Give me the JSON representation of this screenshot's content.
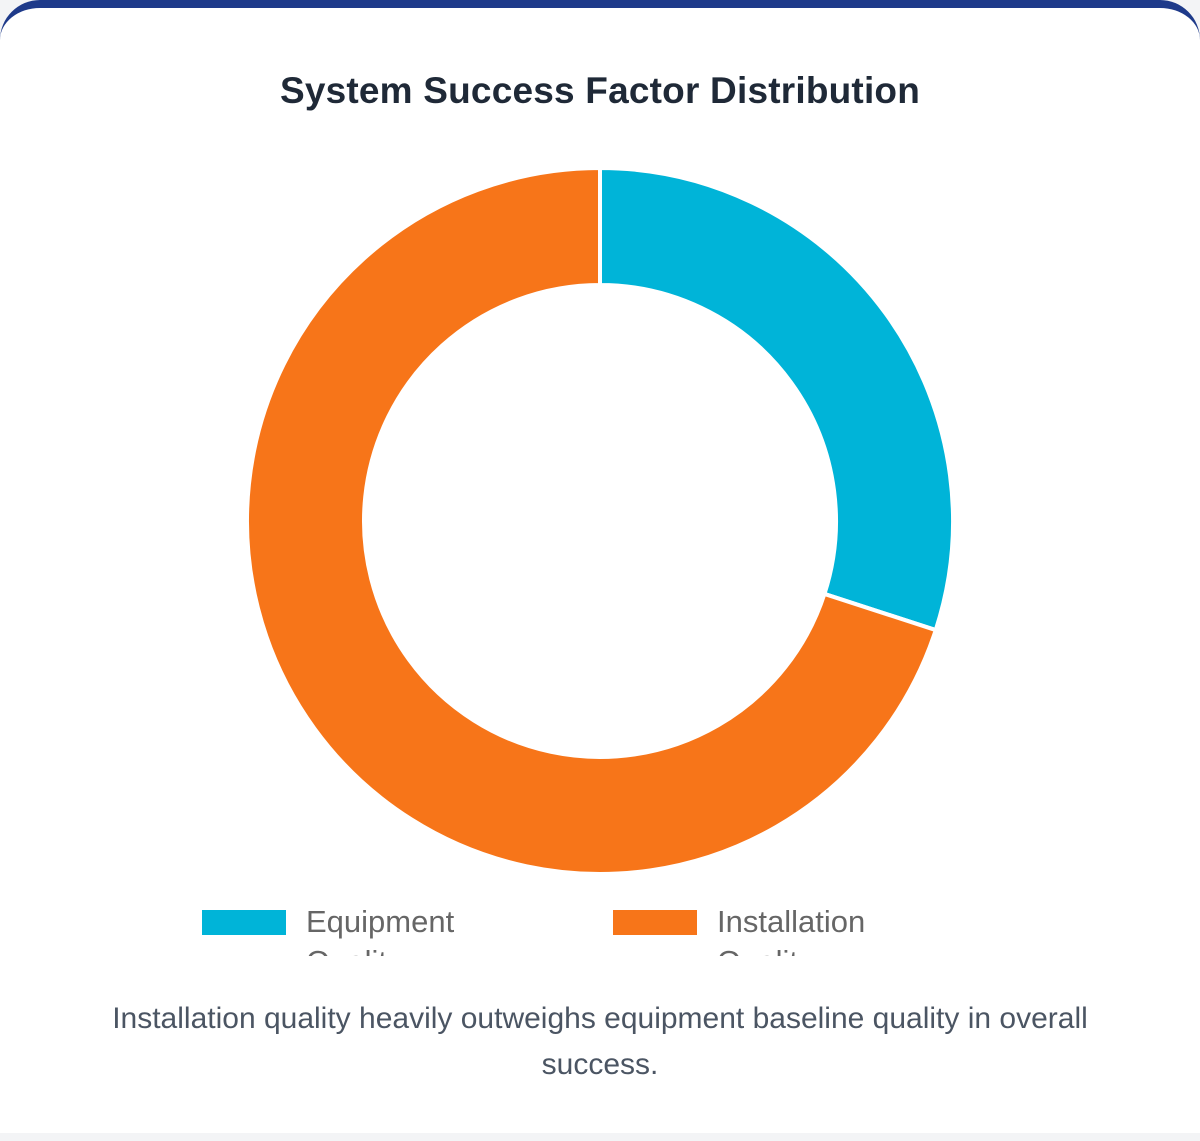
{
  "card": {
    "title": "System Success Factor Distribution",
    "caption": "Installation quality heavily outweighs equipment baseline quality in overall success."
  },
  "chart_data": {
    "type": "doughnut",
    "title": "System Success Factor Distribution",
    "labels": [
      "Equipment Quality",
      "Installation Quality"
    ],
    "values": [
      30,
      70
    ],
    "colors": [
      "#00b4d8",
      "#f77519"
    ],
    "legend_position": "bottom"
  }
}
